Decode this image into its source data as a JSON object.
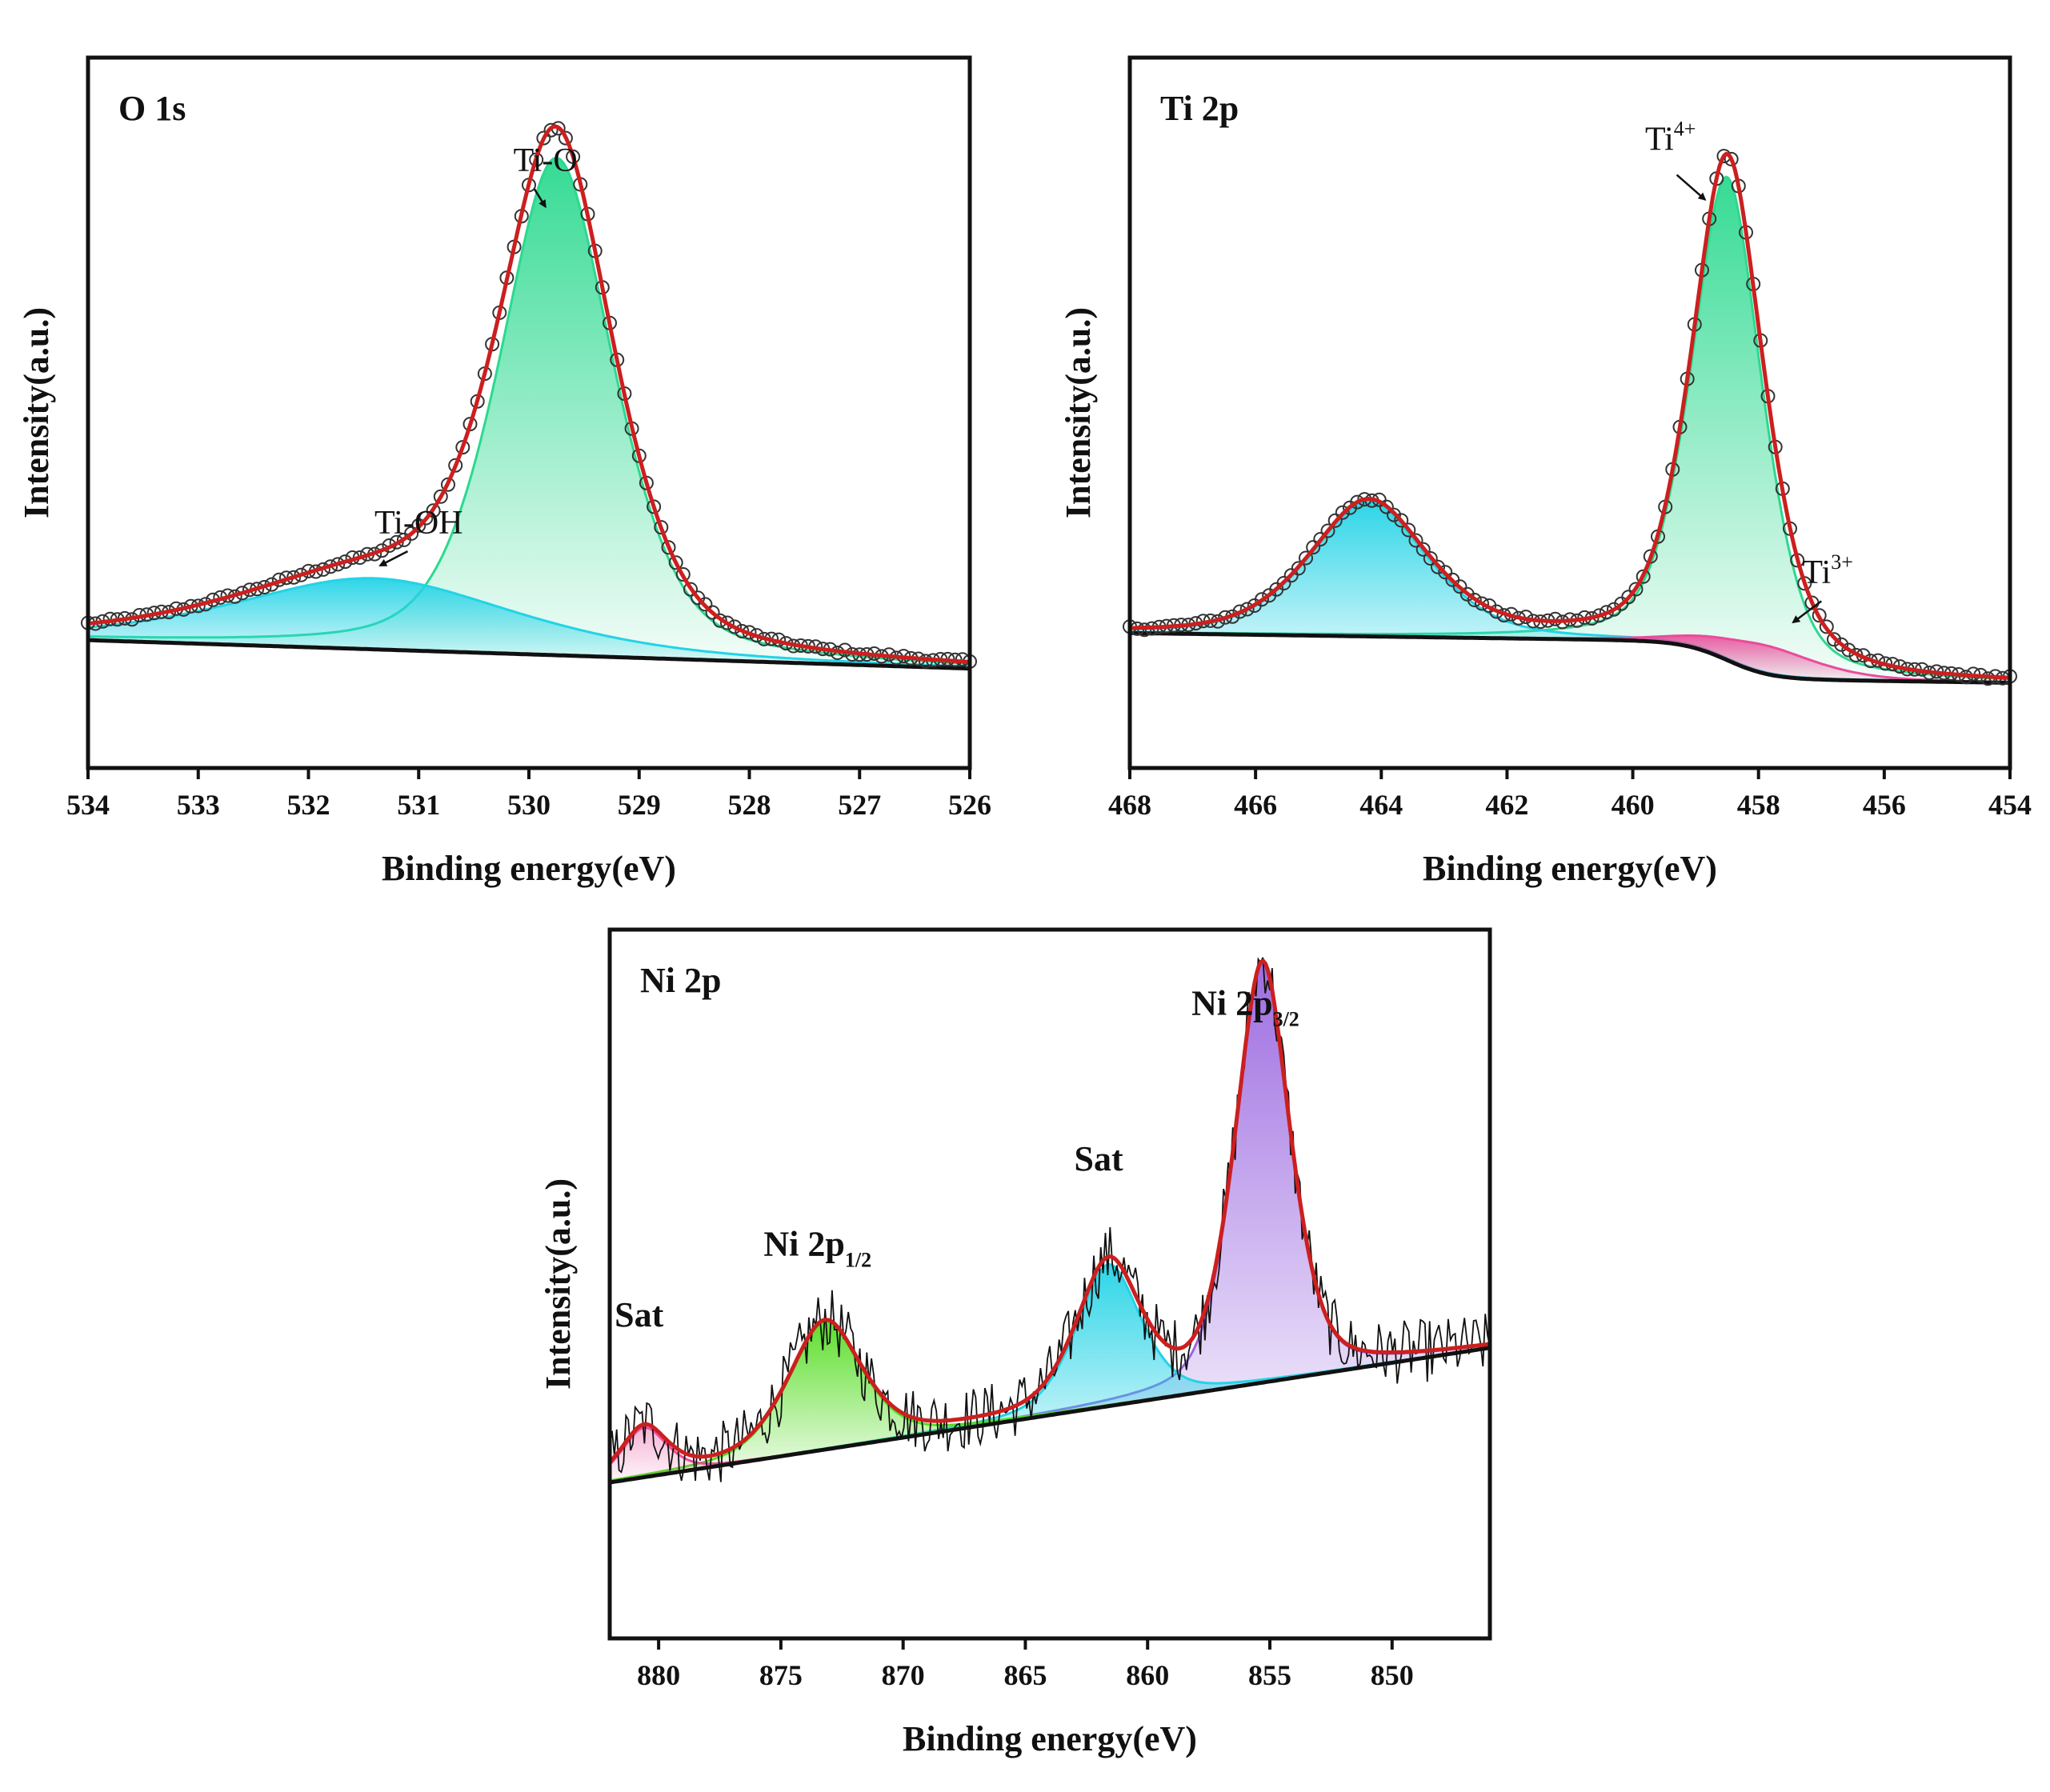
{
  "colors": {
    "envelope": "#cc1f1f",
    "background_line": "#111111",
    "cyan": "#22d3e6",
    "green": "#2bd98f",
    "pink": "#ea4c9a",
    "lime": "#55dd22",
    "purple": "#9966e0",
    "raw": "#111111"
  },
  "chart_data": [
    {
      "id": "o1s",
      "type": "line",
      "title": "O 1s",
      "xlabel": "Binding energy(eV)",
      "ylabel": "Intensity(a.u.)",
      "xlim": [
        534,
        526
      ],
      "x_reversed": true,
      "x_ticks": [
        "534",
        "533",
        "532",
        "531",
        "530",
        "529",
        "528",
        "527",
        "526"
      ],
      "y_ticks_shown": false,
      "ylim": [
        0,
        1.0
      ],
      "background": {
        "start": 0.18,
        "end": 0.14
      },
      "peaks": [
        {
          "name": "Ti-O",
          "label": "Ti-O",
          "center": 529.75,
          "height": 0.7,
          "width": 0.55,
          "color": "green"
        },
        {
          "name": "Ti-OH",
          "label": "Ti-OH",
          "center": 531.4,
          "height": 0.1,
          "width": 1.35,
          "color": "cyan"
        }
      ],
      "raw_points": "circles",
      "annotations": [
        {
          "text": "Ti-O",
          "x": 529.85,
          "y": 0.84
        },
        {
          "text": "Ti-OH",
          "x": 531.0,
          "y": 0.33
        }
      ]
    },
    {
      "id": "ti2p",
      "type": "line",
      "title": "Ti 2p",
      "xlabel": "Binding energy(eV)",
      "ylabel": "Intensity(a.u.)",
      "xlim": [
        468,
        454
      ],
      "x_reversed": true,
      "x_ticks": [
        "468",
        "466",
        "464",
        "462",
        "460",
        "458",
        "456",
        "454"
      ],
      "y_ticks_shown": false,
      "ylim": [
        0,
        1.0
      ],
      "background": {
        "start": 0.19,
        "end": 0.12,
        "step_at": 458.5
      },
      "peaks": [
        {
          "name": "Ti4+",
          "label": "Ti",
          "sup": "4+",
          "center": 458.5,
          "height": 0.68,
          "width": 0.6,
          "color": "green"
        },
        {
          "name": "Ti 2p1/2 component",
          "center": 464.2,
          "height": 0.19,
          "width": 1.0,
          "color": "cyan"
        },
        {
          "name": "Ti3+",
          "label": "Ti",
          "sup": "3+",
          "center": 457.9,
          "height": 0.04,
          "width": 0.9,
          "color": "pink"
        }
      ],
      "raw_points": "circles",
      "annotations": [
        {
          "text": "Ti",
          "sup": "4+",
          "x": 459.4,
          "y": 0.87
        },
        {
          "text": "Ti",
          "sup": "3+",
          "x": 456.9,
          "y": 0.26
        }
      ]
    },
    {
      "id": "ni2p",
      "type": "line",
      "title": "Ni 2p",
      "xlabel": "Binding energy(eV)",
      "ylabel": "Intensity(a.u.)",
      "xlim": [
        882,
        846
      ],
      "x_reversed": true,
      "x_ticks": [
        "880",
        "875",
        "870",
        "865",
        "860",
        "855",
        "850"
      ],
      "x_tick_values": [
        880,
        875,
        870,
        865,
        860,
        855,
        850
      ],
      "y_ticks_shown": false,
      "ylim": [
        0,
        1.0
      ],
      "background": {
        "start": 0.22,
        "end": 0.41
      },
      "peaks": [
        {
          "name": "Ni 2p3/2",
          "label": "Ni 2p",
          "sub": "3/2",
          "center": 855.3,
          "height": 0.59,
          "width": 1.2,
          "color": "purple"
        },
        {
          "name": "Sat",
          "label": "Sat",
          "center": 861.6,
          "height": 0.2,
          "width": 1.4,
          "color": "cyan"
        },
        {
          "name": "Ni 2p1/2",
          "label": "Ni 2p",
          "sub": "1/2",
          "center": 873.2,
          "height": 0.18,
          "width": 1.6,
          "color": "lime"
        },
        {
          "name": "Sat",
          "label": "Sat",
          "center": 880.6,
          "height": 0.07,
          "width": 1.0,
          "color": "pink"
        }
      ],
      "raw_points": "noisy line",
      "annotations": [
        {
          "text": "Ni 2p",
          "sub": "3/2",
          "x": 856.0,
          "y": 0.88
        },
        {
          "text": "Sat",
          "x": 862.0,
          "y": 0.66
        },
        {
          "text": "Ni 2p",
          "sub": "1/2",
          "x": 873.5,
          "y": 0.54
        },
        {
          "text": "Sat",
          "x": 880.8,
          "y": 0.44
        }
      ]
    }
  ]
}
